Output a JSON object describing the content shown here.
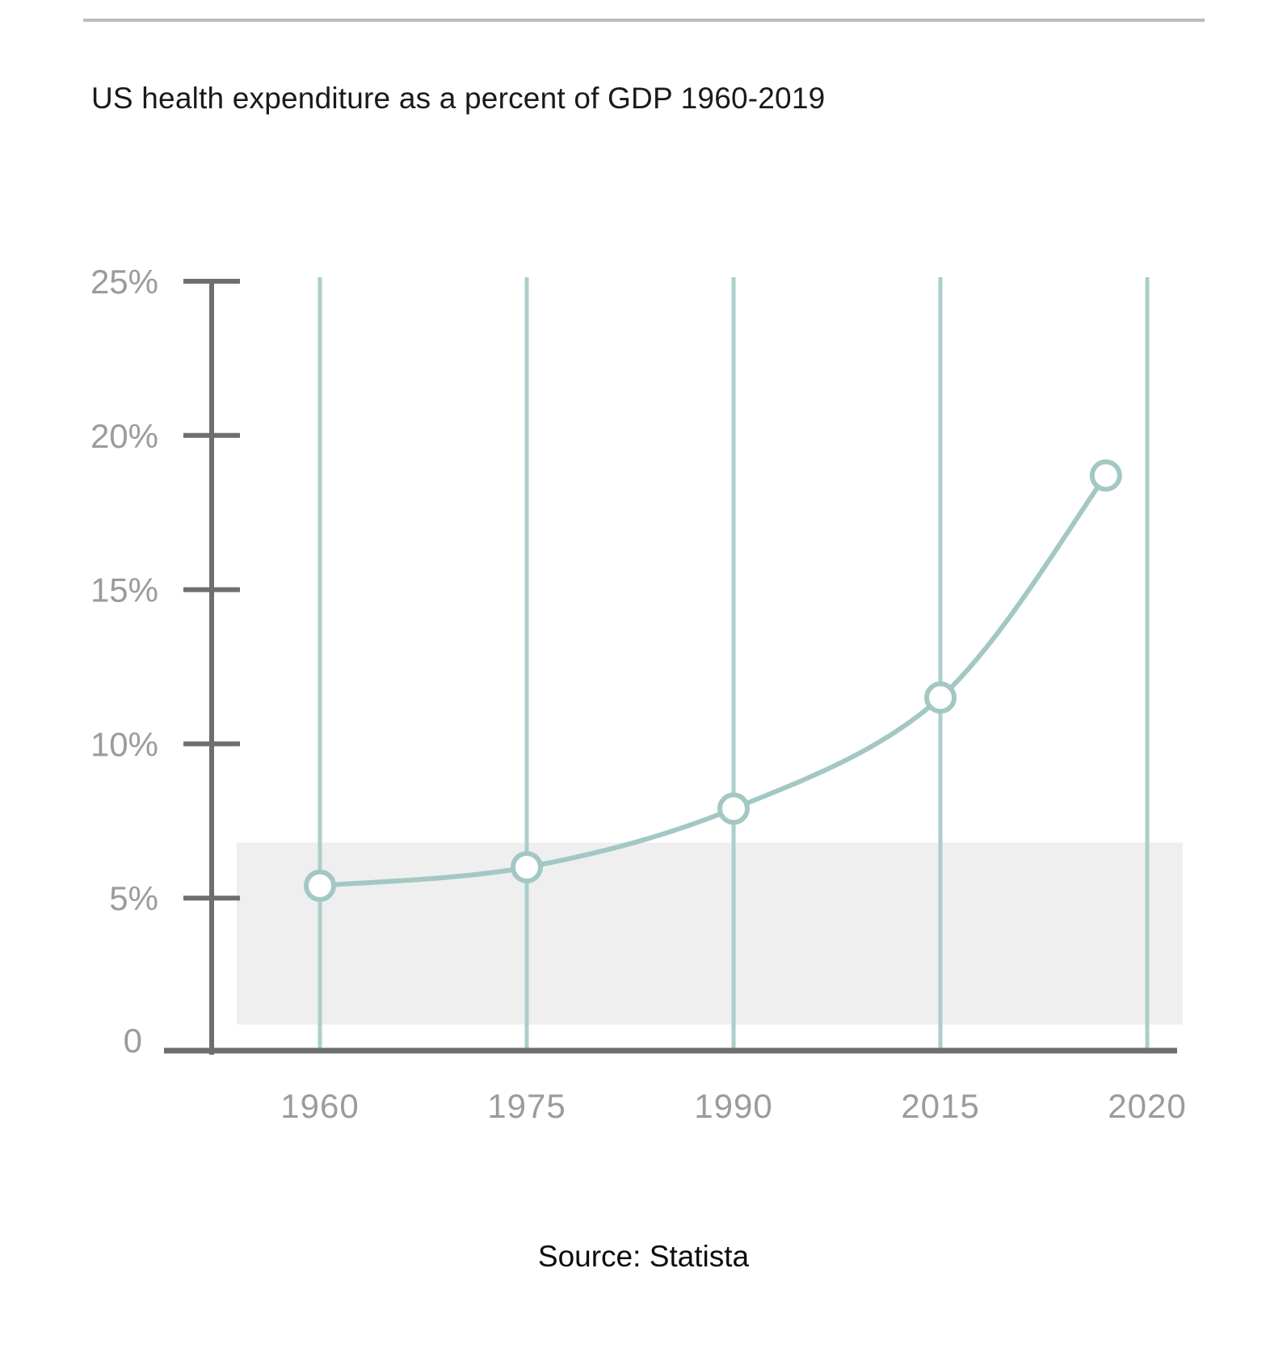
{
  "page": {
    "title": "US health expenditure as a percent of GDP 1960-2019",
    "source": "Source: Statista"
  },
  "colors": {
    "title_text": "#1a1a1a",
    "source_text": "#0d0d0d",
    "divider_gray": "#bcbcbc",
    "axis_gray": "#6e6e6e",
    "tick_label_gray": "#9b9b9b",
    "gridline_teal": "#abcfcb",
    "line_teal": "#a3c8c4",
    "marker_stroke_teal": "#a3c8c4",
    "marker_fill": "#ffffff",
    "band_gray": "#efefef"
  },
  "chart_data": {
    "type": "line",
    "title": "US health expenditure as a percent of GDP 1960-2019",
    "xlabel": "",
    "ylabel": "",
    "x_tick_labels": [
      "1960",
      "1975",
      "1990",
      "2015",
      "2020"
    ],
    "x_tick_years": [
      1960,
      1975,
      1990,
      2015,
      2020
    ],
    "y_ticks": [
      0,
      5,
      10,
      15,
      20,
      25
    ],
    "y_tick_labels": [
      "0",
      "5%",
      "10%",
      "15%",
      "20%",
      "25%"
    ],
    "ylim": [
      0,
      25
    ],
    "y_unit": "percent of GDP",
    "grid": "vertical-lines-at-x-ticks",
    "legend": "none",
    "marker": "open-circle",
    "series": [
      {
        "name": "US health expenditure as a percent of GDP",
        "points": [
          {
            "year": 1960,
            "value": 5.4
          },
          {
            "year": 1975,
            "value": 6.0
          },
          {
            "year": 1990,
            "value": 7.9
          },
          {
            "year": 2015,
            "value": 11.5
          },
          {
            "year": 2019,
            "value": 18.7
          }
        ]
      }
    ],
    "highlight_band": {
      "from_value": 0.9,
      "to_value": 6.8
    },
    "annotations": []
  }
}
